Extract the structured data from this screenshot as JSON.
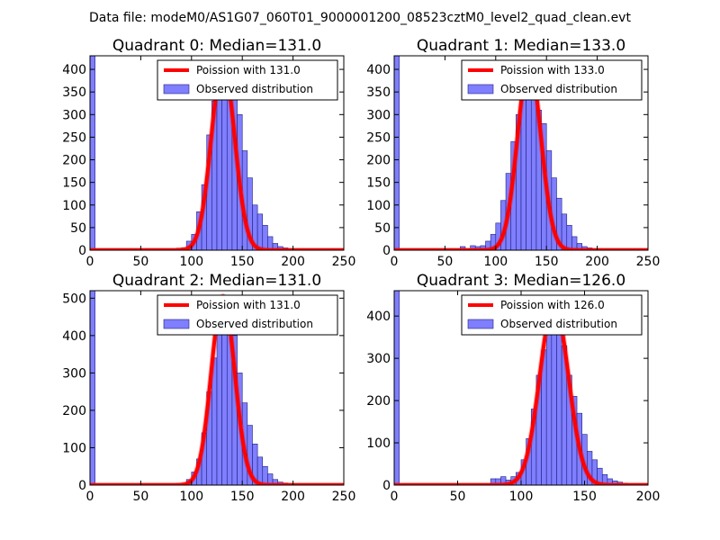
{
  "figure": {
    "suptitle": "Data file: modeM0/AS1G07_060T01_9000001200_08523cztM0_level2_quad_clean.evt"
  },
  "colors": {
    "bar_fill": "#7f7fff",
    "bar_edge": "#1f1f80",
    "curve": "#ff0000"
  },
  "chart_data": [
    {
      "type": "bar",
      "title": "Quadrant 0: Median=131.0",
      "median": 131.0,
      "xlim": [
        0,
        250
      ],
      "ylim": [
        0,
        430
      ],
      "xticks": [
        0,
        50,
        100,
        150,
        200,
        250
      ],
      "yticks": [
        0,
        50,
        100,
        150,
        200,
        250,
        300,
        350,
        400
      ],
      "legend": [
        "Poission with 131.0",
        "Observed distribution"
      ],
      "legend_loc": "upper right",
      "bin_width": 5,
      "bins": [
        [
          0,
          430
        ],
        [
          75,
          3
        ],
        [
          85,
          4
        ],
        [
          90,
          5
        ],
        [
          95,
          20
        ],
        [
          100,
          35
        ],
        [
          105,
          85
        ],
        [
          110,
          145
        ],
        [
          115,
          255
        ],
        [
          120,
          330
        ],
        [
          125,
          370
        ],
        [
          130,
          395
        ],
        [
          135,
          340
        ],
        [
          140,
          390
        ],
        [
          145,
          300
        ],
        [
          150,
          220
        ],
        [
          155,
          160
        ],
        [
          160,
          100
        ],
        [
          165,
          80
        ],
        [
          170,
          55
        ],
        [
          175,
          30
        ],
        [
          180,
          15
        ],
        [
          185,
          8
        ],
        [
          190,
          5
        ],
        [
          195,
          3
        ],
        [
          200,
          2
        ]
      ],
      "curve_peak": 415
    },
    {
      "type": "bar",
      "title": "Quadrant 1: Median=133.0",
      "median": 133.0,
      "xlim": [
        0,
        250
      ],
      "ylim": [
        0,
        430
      ],
      "xticks": [
        0,
        50,
        100,
        150,
        200,
        250
      ],
      "yticks": [
        0,
        50,
        100,
        150,
        200,
        250,
        300,
        350,
        400
      ],
      "legend": [
        "Poission with 133.0",
        "Observed distribution"
      ],
      "legend_loc": "upper right",
      "bin_width": 5,
      "bins": [
        [
          0,
          430
        ],
        [
          65,
          8
        ],
        [
          75,
          10
        ],
        [
          80,
          8
        ],
        [
          85,
          10
        ],
        [
          90,
          20
        ],
        [
          95,
          35
        ],
        [
          100,
          60
        ],
        [
          105,
          110
        ],
        [
          110,
          170
        ],
        [
          115,
          240
        ],
        [
          120,
          300
        ],
        [
          125,
          360
        ],
        [
          130,
          420
        ],
        [
          135,
          395
        ],
        [
          140,
          310
        ],
        [
          145,
          280
        ],
        [
          150,
          220
        ],
        [
          155,
          160
        ],
        [
          160,
          115
        ],
        [
          165,
          80
        ],
        [
          170,
          55
        ],
        [
          175,
          30
        ],
        [
          180,
          15
        ],
        [
          185,
          8
        ],
        [
          190,
          5
        ],
        [
          195,
          3
        ],
        [
          200,
          2
        ],
        [
          210,
          1
        ],
        [
          220,
          1
        ]
      ],
      "curve_peak": 415
    },
    {
      "type": "bar",
      "title": "Quadrant 2: Median=131.0",
      "median": 131.0,
      "xlim": [
        0,
        250
      ],
      "ylim": [
        0,
        520
      ],
      "xticks": [
        0,
        50,
        100,
        150,
        200,
        250
      ],
      "yticks": [
        0,
        100,
        200,
        300,
        400,
        500
      ],
      "legend": [
        "Poission with 131.0",
        "Observed distribution"
      ],
      "legend_loc": "upper right",
      "bin_width": 5,
      "bins": [
        [
          0,
          520
        ],
        [
          80,
          3
        ],
        [
          90,
          5
        ],
        [
          95,
          15
        ],
        [
          100,
          35
        ],
        [
          105,
          70
        ],
        [
          110,
          140
        ],
        [
          115,
          250
        ],
        [
          120,
          340
        ],
        [
          125,
          420
        ],
        [
          130,
          500
        ],
        [
          135,
          480
        ],
        [
          140,
          400
        ],
        [
          145,
          300
        ],
        [
          150,
          220
        ],
        [
          155,
          160
        ],
        [
          160,
          110
        ],
        [
          165,
          75
        ],
        [
          170,
          50
        ],
        [
          175,
          30
        ],
        [
          180,
          15
        ],
        [
          185,
          8
        ],
        [
          190,
          5
        ],
        [
          200,
          3
        ],
        [
          205,
          2
        ]
      ],
      "curve_peak": 505
    },
    {
      "type": "bar",
      "title": "Quadrant 3: Median=126.0",
      "median": 126.0,
      "xlim": [
        0,
        200
      ],
      "ylim": [
        0,
        460
      ],
      "xticks": [
        0,
        50,
        100,
        150,
        200
      ],
      "yticks": [
        0,
        100,
        200,
        300,
        400
      ],
      "legend": [
        "Poission with 126.0",
        "Observed distribution"
      ],
      "legend_loc": "upper right",
      "bin_width": 4,
      "bins": [
        [
          0,
          460
        ],
        [
          76,
          15
        ],
        [
          80,
          15
        ],
        [
          84,
          20
        ],
        [
          88,
          12
        ],
        [
          92,
          20
        ],
        [
          96,
          30
        ],
        [
          100,
          60
        ],
        [
          104,
          110
        ],
        [
          108,
          180
        ],
        [
          112,
          260
        ],
        [
          116,
          320
        ],
        [
          120,
          380
        ],
        [
          124,
          420
        ],
        [
          128,
          390
        ],
        [
          132,
          330
        ],
        [
          136,
          260
        ],
        [
          140,
          210
        ],
        [
          144,
          170
        ],
        [
          148,
          120
        ],
        [
          152,
          80
        ],
        [
          156,
          60
        ],
        [
          160,
          40
        ],
        [
          164,
          25
        ],
        [
          168,
          15
        ],
        [
          172,
          10
        ],
        [
          176,
          7
        ],
        [
          180,
          4
        ],
        [
          184,
          3
        ],
        [
          188,
          2
        ],
        [
          192,
          1
        ]
      ],
      "curve_peak": 430
    }
  ]
}
